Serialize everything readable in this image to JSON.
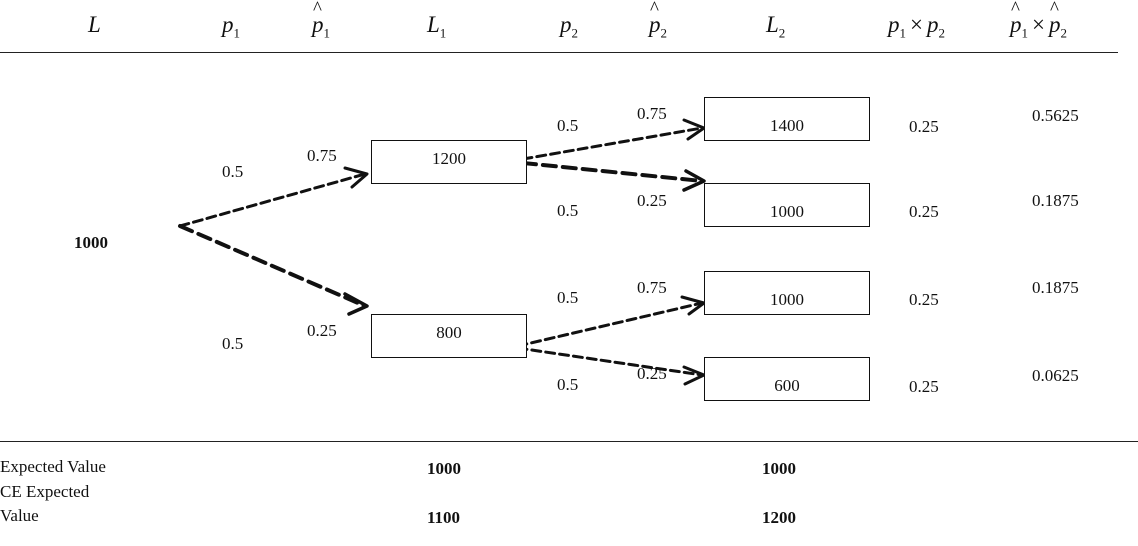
{
  "headers": {
    "L": "L",
    "p1_base": "p",
    "p1_sub": "1",
    "p1hat_base": "p",
    "p1hat_sub": "1",
    "L1_base": "L",
    "L1_sub": "1",
    "p2_base": "p",
    "p2_sub": "2",
    "p2hat_base": "p",
    "p2hat_sub": "2",
    "L2_base": "L",
    "L2_sub": "2",
    "prod_a": "p",
    "prod_a_sub": "1",
    "prod_times": "×",
    "prod_b": "p",
    "prod_b_sub": "2",
    "prodhat_a": "p",
    "prodhat_a_sub": "1",
    "prodhat_times": "×",
    "prodhat_b": "p",
    "prodhat_b_sub": "2"
  },
  "root": {
    "value": "1000"
  },
  "stage1": {
    "up": {
      "p": "0.5",
      "phat": "0.75",
      "outcome": "1200"
    },
    "down": {
      "p": "0.5",
      "phat": "0.25",
      "outcome": "800"
    }
  },
  "stage2": [
    {
      "p": "0.5",
      "phat": "0.75",
      "outcome": "1400",
      "p_product": "0.25",
      "phat_product": "0.5625"
    },
    {
      "p": "0.5",
      "phat": "0.25",
      "outcome": "1000",
      "p_product": "0.25",
      "phat_product": "0.1875"
    },
    {
      "p": "0.5",
      "phat": "0.75",
      "outcome": "1000",
      "p_product": "0.25",
      "phat_product": "0.1875"
    },
    {
      "p": "0.5",
      "phat": "0.25",
      "outcome": "600",
      "p_product": "0.25",
      "phat_product": "0.0625"
    }
  ],
  "summary": {
    "expected_value_label": "Expected Value",
    "ce_expected_value_label_line1": "CE Expected",
    "ce_expected_value_label_line2": "Value",
    "ev_L1": "1000",
    "ev_L2": "1000",
    "ce_L1": "1100",
    "ce_L2": "1200"
  }
}
